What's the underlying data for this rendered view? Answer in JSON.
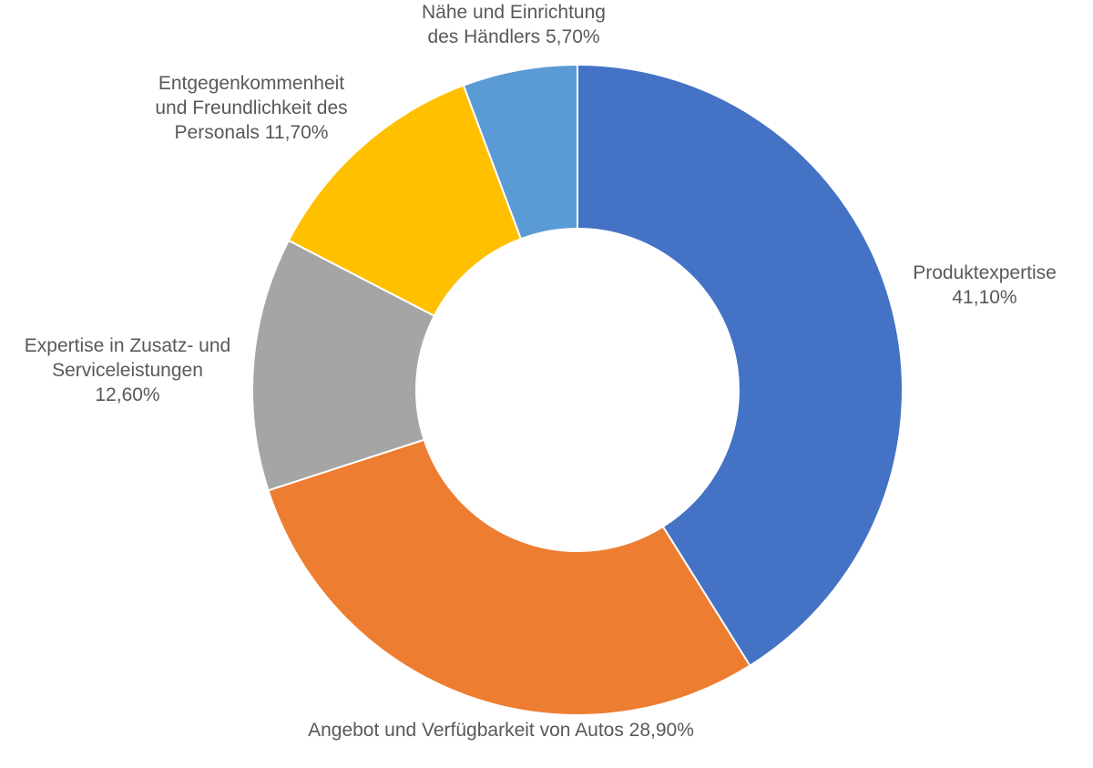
{
  "chart_data": {
    "type": "pie",
    "variant": "donut",
    "title": "",
    "categories": [
      "Produktexpertise",
      "Angebot und Verfügbarkeit von Autos",
      "Expertise in Zusatz- und Serviceleistungen",
      "Entgegenkommenheit und Freundlichkeit des Personals",
      "Nähe und Einrichtung des Händlers"
    ],
    "values": [
      41.1,
      28.9,
      12.6,
      11.7,
      5.7
    ],
    "units": "%",
    "colors": [
      "#4472C4",
      "#ED7D31",
      "#A5A5A5",
      "#FFC000",
      "#5B9BD5"
    ],
    "labels": [
      [
        "Produktexpertise",
        "41,10%"
      ],
      [
        "Angebot und Verfügbarkeit von Autos 28,90%"
      ],
      [
        "Expertise in Zusatz- und",
        "Serviceleistungen",
        "12,60%"
      ],
      [
        "Entgegenkommenheit",
        "und Freundlichkeit des",
        "Personals 11,70%"
      ],
      [
        "Nähe und Einrichtung",
        "des Händlers 5,70%"
      ]
    ],
    "start_angle_deg": 0,
    "direction": "clockwise",
    "legend": "none"
  }
}
